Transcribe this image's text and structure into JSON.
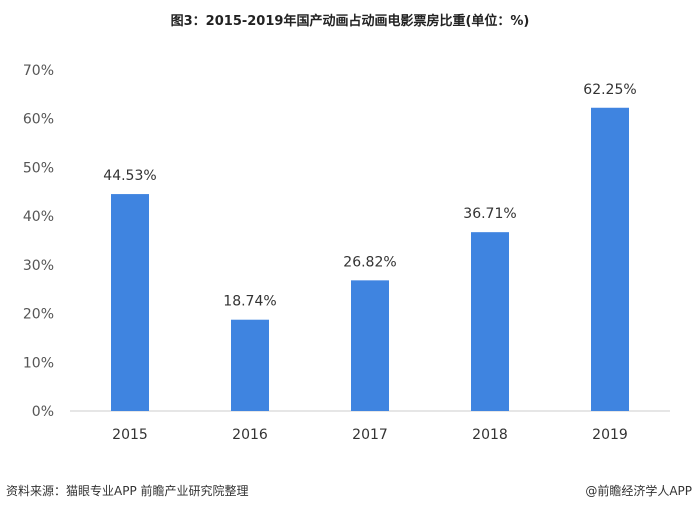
{
  "title": "图3：2015-2019年国产动画占动画电影票房比重(单位：%)",
  "footer": {
    "source": "资料来源：猫眼专业APP 前瞻产业研究院整理",
    "brand": "@前瞻经济学人APP"
  },
  "chart_data": {
    "type": "bar",
    "categories": [
      "2015",
      "2016",
      "2017",
      "2018",
      "2019"
    ],
    "values": [
      44.53,
      18.74,
      26.82,
      36.71,
      62.25
    ],
    "data_labels": [
      "44.53%",
      "18.74%",
      "26.82%",
      "36.71%",
      "62.25%"
    ],
    "y_ticks": [
      "0%",
      "10%",
      "20%",
      "30%",
      "40%",
      "50%",
      "60%",
      "70%"
    ],
    "ylim": [
      0,
      70
    ],
    "bar_color": "#3f84e0",
    "axis_color": "#cccccc",
    "grid": false,
    "legend": "none"
  }
}
